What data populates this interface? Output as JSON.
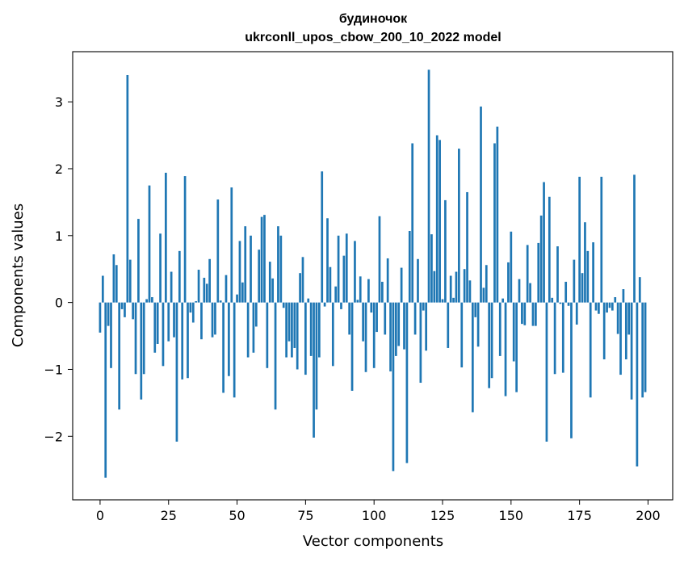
{
  "chart_data": {
    "type": "bar",
    "title": "будиночок",
    "subtitle": "ukrconll_upos_cbow_200_10_2022 model",
    "xlabel": "Vector components",
    "ylabel": "Components values",
    "xlim": [
      -10,
      209
    ],
    "ylim": [
      -2.95,
      3.75
    ],
    "xticks": [
      0,
      25,
      50,
      75,
      100,
      125,
      150,
      175,
      200
    ],
    "xtick_labels": [
      "0",
      "25",
      "50",
      "75",
      "100",
      "125",
      "150",
      "175",
      "200"
    ],
    "yticks": [
      -2,
      -1,
      0,
      1,
      2,
      3
    ],
    "ytick_labels": [
      "−2",
      "−1",
      "0",
      "1",
      "2",
      "3"
    ],
    "bar_color": "#1f77b4",
    "grid": false,
    "values": [
      -0.45,
      0.4,
      -2.62,
      -0.35,
      -0.98,
      0.72,
      0.56,
      -1.6,
      -0.1,
      -0.22,
      3.4,
      0.64,
      -0.25,
      -1.07,
      1.25,
      -1.45,
      -1.07,
      0.05,
      1.75,
      0.08,
      -0.75,
      -0.62,
      1.03,
      -0.95,
      1.94,
      -0.58,
      0.46,
      -0.52,
      -2.08,
      0.77,
      -1.15,
      1.89,
      -1.13,
      -0.15,
      -0.3,
      0.02,
      0.49,
      -0.55,
      0.37,
      0.28,
      0.65,
      -0.52,
      -0.48,
      1.54,
      0.03,
      -1.35,
      0.41,
      -1.1,
      1.72,
      -1.42,
      0.12,
      0.92,
      0.3,
      1.14,
      -0.82,
      1.0,
      -0.75,
      -0.36,
      0.79,
      1.28,
      1.31,
      -0.98,
      0.61,
      0.36,
      -1.6,
      1.14,
      1.0,
      -0.08,
      -0.82,
      -0.58,
      -0.82,
      -0.68,
      -1.0,
      0.44,
      0.68,
      -1.08,
      0.06,
      -0.8,
      -2.02,
      -1.6,
      -0.82,
      1.96,
      -0.06,
      1.26,
      0.53,
      -0.95,
      0.24,
      1.0,
      -0.1,
      0.7,
      1.03,
      -0.48,
      -1.32,
      0.92,
      0.04,
      0.39,
      -0.58,
      -1.04,
      0.35,
      -0.15,
      -0.98,
      -0.44,
      1.29,
      0.31,
      -0.48,
      0.66,
      -1.03,
      -2.52,
      -0.8,
      -0.65,
      0.52,
      -0.7,
      -2.4,
      1.07,
      2.38,
      -0.48,
      0.65,
      -1.2,
      -0.12,
      -0.72,
      3.48,
      1.02,
      0.47,
      2.5,
      2.43,
      0.05,
      1.53,
      -0.68,
      0.4,
      0.07,
      0.46,
      2.3,
      -0.97,
      0.5,
      1.65,
      0.33,
      -1.64,
      -0.22,
      -0.66,
      2.93,
      0.22,
      0.56,
      -1.28,
      -1.13,
      2.38,
      2.63,
      -0.8,
      0.06,
      -1.4,
      0.6,
      1.06,
      -0.88,
      -1.34,
      0.35,
      -0.32,
      -0.34,
      0.86,
      0.29,
      -0.35,
      -0.35,
      0.89,
      1.3,
      1.8,
      -2.08,
      1.58,
      0.07,
      -1.07,
      0.84,
      -0.02,
      -1.05,
      0.31,
      -0.05,
      -2.03,
      0.64,
      -0.33,
      1.88,
      0.44,
      1.2,
      0.77,
      -1.42,
      0.9,
      -0.12,
      -0.17,
      1.88,
      -0.85,
      -0.15,
      -0.08,
      -0.12,
      0.08,
      -0.47,
      -1.08,
      0.2,
      -0.85,
      -0.48,
      -1.45,
      1.91,
      -2.45,
      0.38,
      -1.42,
      -1.34
    ]
  }
}
